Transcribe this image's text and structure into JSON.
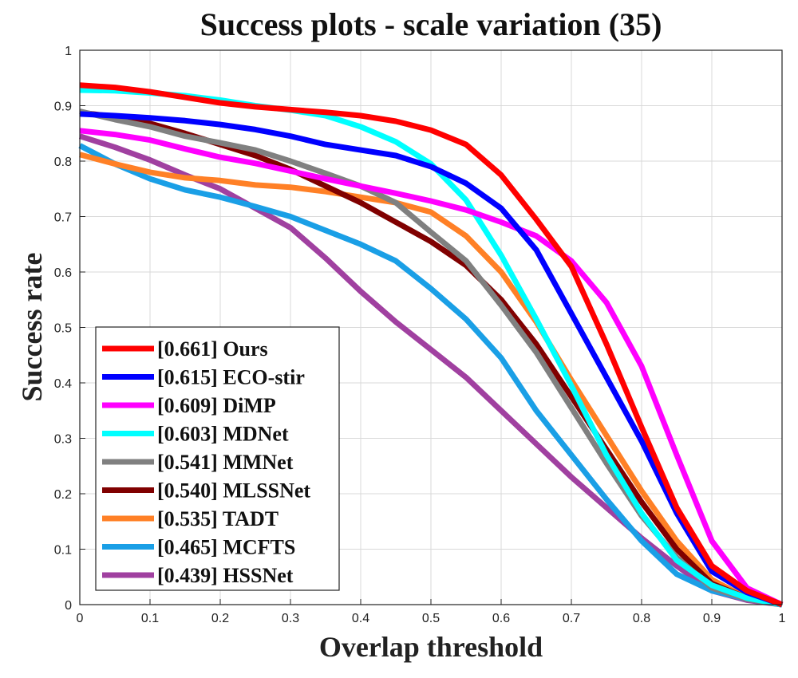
{
  "chart_data": {
    "type": "line",
    "title": "Success plots - scale variation (35)",
    "xlabel": "Overlap threshold",
    "ylabel": "Success rate",
    "xlim": [
      0,
      1
    ],
    "ylim": [
      0,
      1
    ],
    "xticks": [
      "0",
      "0.1",
      "0.2",
      "0.3",
      "0.4",
      "0.5",
      "0.6",
      "0.7",
      "0.8",
      "0.9",
      "1"
    ],
    "yticks": [
      "0",
      "0.1",
      "0.2",
      "0.3",
      "0.4",
      "0.5",
      "0.6",
      "0.7",
      "0.8",
      "0.9",
      "1"
    ],
    "grid": true,
    "legend_position": "bottom-left",
    "x": [
      0,
      0.05,
      0.1,
      0.15,
      0.2,
      0.25,
      0.3,
      0.35,
      0.4,
      0.45,
      0.5,
      0.55,
      0.6,
      0.65,
      0.7,
      0.75,
      0.8,
      0.85,
      0.9,
      0.95,
      1.0
    ],
    "series": [
      {
        "name": "Ours",
        "label": "[0.661] Ours",
        "color": "#ff0000",
        "values": [
          0.937,
          0.933,
          0.925,
          0.915,
          0.905,
          0.898,
          0.893,
          0.888,
          0.882,
          0.872,
          0.856,
          0.83,
          0.775,
          0.695,
          0.61,
          0.47,
          0.32,
          0.175,
          0.07,
          0.025,
          0.0
        ]
      },
      {
        "name": "ECO-stir",
        "label": "[0.615] ECO-stir",
        "color": "#0000ff",
        "values": [
          0.885,
          0.882,
          0.878,
          0.873,
          0.866,
          0.857,
          0.845,
          0.83,
          0.82,
          0.81,
          0.79,
          0.76,
          0.715,
          0.64,
          0.525,
          0.41,
          0.295,
          0.165,
          0.06,
          0.022,
          0.0
        ]
      },
      {
        "name": "DiMP",
        "label": "[0.609] DiMP",
        "color": "#ff00ff",
        "values": [
          0.855,
          0.848,
          0.838,
          0.822,
          0.807,
          0.796,
          0.782,
          0.768,
          0.755,
          0.742,
          0.728,
          0.712,
          0.69,
          0.665,
          0.62,
          0.545,
          0.43,
          0.27,
          0.115,
          0.03,
          0.0
        ]
      },
      {
        "name": "MDNet",
        "label": "[0.603] MDNet",
        "color": "#00ffff",
        "values": [
          0.928,
          0.927,
          0.923,
          0.918,
          0.91,
          0.9,
          0.892,
          0.882,
          0.862,
          0.835,
          0.795,
          0.73,
          0.63,
          0.515,
          0.395,
          0.27,
          0.165,
          0.08,
          0.035,
          0.012,
          0.0
        ]
      },
      {
        "name": "MMNet",
        "label": "[0.541] MMNet",
        "color": "#808080",
        "values": [
          0.89,
          0.875,
          0.862,
          0.845,
          0.833,
          0.82,
          0.8,
          0.778,
          0.755,
          0.725,
          0.672,
          0.62,
          0.54,
          0.455,
          0.355,
          0.255,
          0.16,
          0.085,
          0.03,
          0.01,
          0.0
        ]
      },
      {
        "name": "MLSSNet",
        "label": "[0.540] MLSSNet",
        "color": "#800000",
        "values": [
          0.888,
          0.88,
          0.868,
          0.85,
          0.83,
          0.81,
          0.785,
          0.755,
          0.725,
          0.69,
          0.655,
          0.612,
          0.55,
          0.47,
          0.375,
          0.28,
          0.185,
          0.1,
          0.038,
          0.012,
          0.0
        ]
      },
      {
        "name": "TADT",
        "label": "[0.535] TADT",
        "color": "#ff8026",
        "values": [
          0.812,
          0.795,
          0.78,
          0.77,
          0.765,
          0.757,
          0.753,
          0.745,
          0.735,
          0.725,
          0.708,
          0.665,
          0.6,
          0.51,
          0.405,
          0.305,
          0.205,
          0.115,
          0.045,
          0.012,
          0.0
        ]
      },
      {
        "name": "MCFTS",
        "label": "[0.465] MCFTS",
        "color": "#1a9fe6",
        "values": [
          0.828,
          0.795,
          0.768,
          0.748,
          0.735,
          0.718,
          0.7,
          0.675,
          0.65,
          0.62,
          0.57,
          0.515,
          0.445,
          0.35,
          0.27,
          0.19,
          0.115,
          0.055,
          0.025,
          0.01,
          0.0
        ]
      },
      {
        "name": "HSSNet",
        "label": "[0.439] HSSNet",
        "color": "#a040a0",
        "values": [
          0.845,
          0.825,
          0.802,
          0.775,
          0.75,
          0.715,
          0.68,
          0.625,
          0.565,
          0.51,
          0.46,
          0.41,
          0.35,
          0.29,
          0.23,
          0.175,
          0.12,
          0.07,
          0.025,
          0.008,
          0.0
        ]
      }
    ]
  }
}
